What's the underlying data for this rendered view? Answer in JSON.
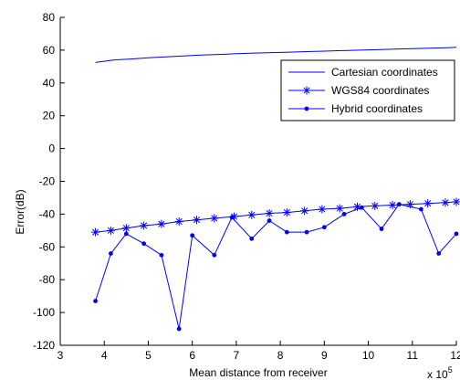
{
  "chart_data": {
    "type": "line",
    "xlabel": "Mean distance from receiver",
    "x_exponent": "x 10",
    "x_exponent_power": "5",
    "ylabel": "Error(dB)",
    "xlim": [
      3,
      12
    ],
    "ylim": [
      -120,
      80
    ],
    "x_ticks": [
      3,
      4,
      5,
      6,
      7,
      8,
      9,
      10,
      11,
      12
    ],
    "y_ticks": [
      -120,
      -100,
      -80,
      -60,
      -40,
      -20,
      0,
      20,
      40,
      60,
      80
    ],
    "grid": false,
    "legend_position": "top-right",
    "colors": {
      "series": "#0000ff",
      "axis": "#000000"
    },
    "series": [
      {
        "name": "Cartesian coordinates",
        "marker": "none",
        "x": [
          3.8,
          4.2,
          4.6,
          5.0,
          5.4,
          5.8,
          6.2,
          6.6,
          7.0,
          7.4,
          7.8,
          8.2,
          8.6,
          9.0,
          9.4,
          9.8,
          10.2,
          10.6,
          11.0,
          11.4,
          11.8,
          12.0
        ],
        "values": [
          52.5,
          54.0,
          54.6,
          55.3,
          55.9,
          56.5,
          57.0,
          57.4,
          57.8,
          58.2,
          58.5,
          58.8,
          59.1,
          59.4,
          59.7,
          60.0,
          60.3,
          60.6,
          60.9,
          61.2,
          61.5,
          61.7
        ]
      },
      {
        "name": "WGS84 coordinates",
        "marker": "asterisk",
        "x": [
          3.8,
          4.15,
          4.5,
          4.9,
          5.3,
          5.7,
          6.1,
          6.5,
          6.95,
          7.35,
          7.75,
          8.15,
          8.55,
          8.95,
          9.35,
          9.75,
          10.15,
          10.55,
          10.95,
          11.35,
          11.75,
          12.0
        ],
        "values": [
          -51,
          -50,
          -48.5,
          -47,
          -46,
          -44.5,
          -43.5,
          -42.5,
          -41.5,
          -40.5,
          -39.5,
          -39,
          -38,
          -37,
          -36.5,
          -35.5,
          -35,
          -34.5,
          -34,
          -33.5,
          -33,
          -32.5
        ]
      },
      {
        "name": "Hybrid coordinates",
        "marker": "dot",
        "x": [
          3.8,
          4.15,
          4.5,
          4.9,
          5.3,
          5.7,
          6.0,
          6.5,
          6.9,
          7.35,
          7.75,
          8.15,
          8.6,
          9.0,
          9.45,
          9.85,
          10.3,
          10.7,
          11.2,
          11.6,
          12.0
        ],
        "values": [
          -93,
          -64,
          -52,
          -58,
          -65,
          -110,
          -53,
          -65,
          -42,
          -55,
          -44,
          -51,
          -51,
          -48,
          -40,
          -36,
          -49,
          -34,
          -37,
          -64,
          -52
        ]
      }
    ]
  }
}
